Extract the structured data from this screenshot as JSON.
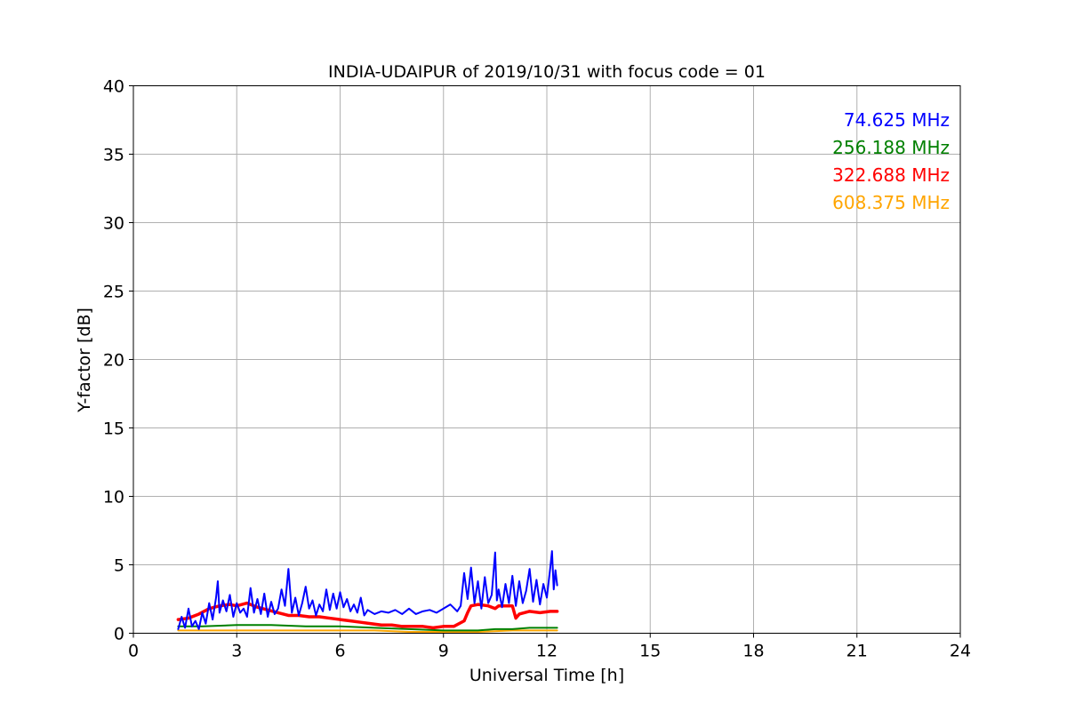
{
  "chart_data": {
    "type": "line",
    "title": "INDIA-UDAIPUR of 2019/10/31 with focus code = 01",
    "xlabel": "Universal Time [h]",
    "ylabel": "Y-factor [dB]",
    "xlim": [
      0,
      24
    ],
    "ylim": [
      0,
      40
    ],
    "xticks": [
      "0",
      "3",
      "6",
      "9",
      "12",
      "15",
      "18",
      "21",
      "24"
    ],
    "yticks": [
      "0",
      "5",
      "10",
      "15",
      "20",
      "25",
      "30",
      "35",
      "40"
    ],
    "grid": true,
    "legend_position": "top-right",
    "series": [
      {
        "name": "74.625 MHz",
        "color": "#0000ff",
        "x": [
          1.3,
          1.4,
          1.5,
          1.6,
          1.7,
          1.8,
          1.9,
          2.0,
          2.1,
          2.2,
          2.3,
          2.4,
          2.45,
          2.5,
          2.6,
          2.7,
          2.8,
          2.9,
          3.0,
          3.1,
          3.2,
          3.3,
          3.4,
          3.5,
          3.6,
          3.7,
          3.8,
          3.9,
          4.0,
          4.1,
          4.2,
          4.3,
          4.4,
          4.5,
          4.6,
          4.7,
          4.8,
          4.9,
          5.0,
          5.1,
          5.2,
          5.3,
          5.4,
          5.5,
          5.6,
          5.7,
          5.8,
          5.9,
          6.0,
          6.1,
          6.2,
          6.3,
          6.4,
          6.5,
          6.6,
          6.7,
          6.8,
          7.0,
          7.2,
          7.4,
          7.6,
          7.8,
          8.0,
          8.2,
          8.4,
          8.6,
          8.8,
          9.0,
          9.2,
          9.4,
          9.5,
          9.6,
          9.7,
          9.8,
          9.9,
          10.0,
          10.1,
          10.2,
          10.3,
          10.4,
          10.5,
          10.55,
          10.6,
          10.7,
          10.8,
          10.9,
          11.0,
          11.1,
          11.2,
          11.3,
          11.4,
          11.5,
          11.6,
          11.7,
          11.8,
          11.9,
          12.0,
          12.1,
          12.15,
          12.2,
          12.25,
          12.3
        ],
        "y": [
          0.3,
          1.2,
          0.4,
          1.8,
          0.5,
          0.9,
          0.3,
          1.5,
          0.7,
          2.2,
          1.0,
          2.6,
          3.8,
          1.5,
          2.4,
          1.6,
          2.8,
          1.2,
          2.2,
          1.5,
          1.8,
          1.2,
          3.3,
          1.5,
          2.5,
          1.4,
          2.9,
          1.2,
          2.3,
          1.4,
          1.8,
          3.2,
          2.0,
          4.7,
          1.5,
          2.6,
          1.3,
          2.2,
          3.4,
          1.8,
          2.4,
          1.3,
          2.1,
          1.6,
          3.2,
          1.7,
          2.9,
          1.8,
          3.0,
          1.9,
          2.5,
          1.6,
          2.1,
          1.5,
          2.6,
          1.3,
          1.7,
          1.4,
          1.6,
          1.5,
          1.7,
          1.4,
          1.8,
          1.4,
          1.6,
          1.7,
          1.5,
          1.8,
          2.1,
          1.6,
          2.0,
          4.4,
          2.5,
          4.8,
          2.2,
          3.8,
          1.8,
          4.1,
          2.2,
          2.8,
          5.9,
          2.4,
          3.2,
          1.9,
          3.6,
          2.2,
          4.2,
          2.0,
          3.8,
          2.2,
          3.1,
          4.7,
          2.3,
          3.9,
          2.1,
          3.6,
          2.6,
          4.8,
          6.0,
          3.2,
          4.6,
          3.5
        ]
      },
      {
        "name": "256.188 MHz",
        "color": "#008000",
        "x": [
          1.3,
          2.0,
          3.0,
          4.0,
          5.0,
          6.0,
          7.0,
          8.0,
          9.0,
          9.5,
          10.0,
          10.5,
          11.0,
          11.5,
          12.0,
          12.3
        ],
        "y": [
          0.5,
          0.5,
          0.6,
          0.6,
          0.5,
          0.5,
          0.4,
          0.3,
          0.2,
          0.2,
          0.2,
          0.3,
          0.3,
          0.4,
          0.4,
          0.4
        ]
      },
      {
        "name": "322.688 MHz",
        "color": "#ff0000",
        "x": [
          1.3,
          1.6,
          1.9,
          2.2,
          2.5,
          2.8,
          3.0,
          3.3,
          3.6,
          3.9,
          4.2,
          4.5,
          4.8,
          5.1,
          5.4,
          5.7,
          6.0,
          6.3,
          6.6,
          6.9,
          7.2,
          7.5,
          7.8,
          8.1,
          8.4,
          8.7,
          9.0,
          9.3,
          9.6,
          9.7,
          9.8,
          10.0,
          10.3,
          10.5,
          10.6,
          10.8,
          11.0,
          11.1,
          11.2,
          11.5,
          11.8,
          12.1,
          12.3
        ],
        "y": [
          1.0,
          1.1,
          1.4,
          1.8,
          2.0,
          2.1,
          2.0,
          2.2,
          1.9,
          1.7,
          1.5,
          1.3,
          1.3,
          1.2,
          1.2,
          1.1,
          1.0,
          0.9,
          0.8,
          0.7,
          0.6,
          0.6,
          0.5,
          0.5,
          0.5,
          0.4,
          0.5,
          0.5,
          0.9,
          1.5,
          2.0,
          2.1,
          2.0,
          1.8,
          2.0,
          2.0,
          2.0,
          1.1,
          1.4,
          1.6,
          1.5,
          1.6,
          1.6
        ]
      },
      {
        "name": "608.375 MHz",
        "color": "#ffa500",
        "x": [
          1.3,
          2.0,
          3.0,
          4.0,
          5.0,
          6.0,
          7.0,
          8.0,
          9.0,
          10.0,
          11.0,
          12.0,
          12.3
        ],
        "y": [
          0.2,
          0.2,
          0.2,
          0.2,
          0.2,
          0.2,
          0.2,
          0.1,
          0.1,
          0.1,
          0.2,
          0.2,
          0.2
        ]
      }
    ]
  }
}
